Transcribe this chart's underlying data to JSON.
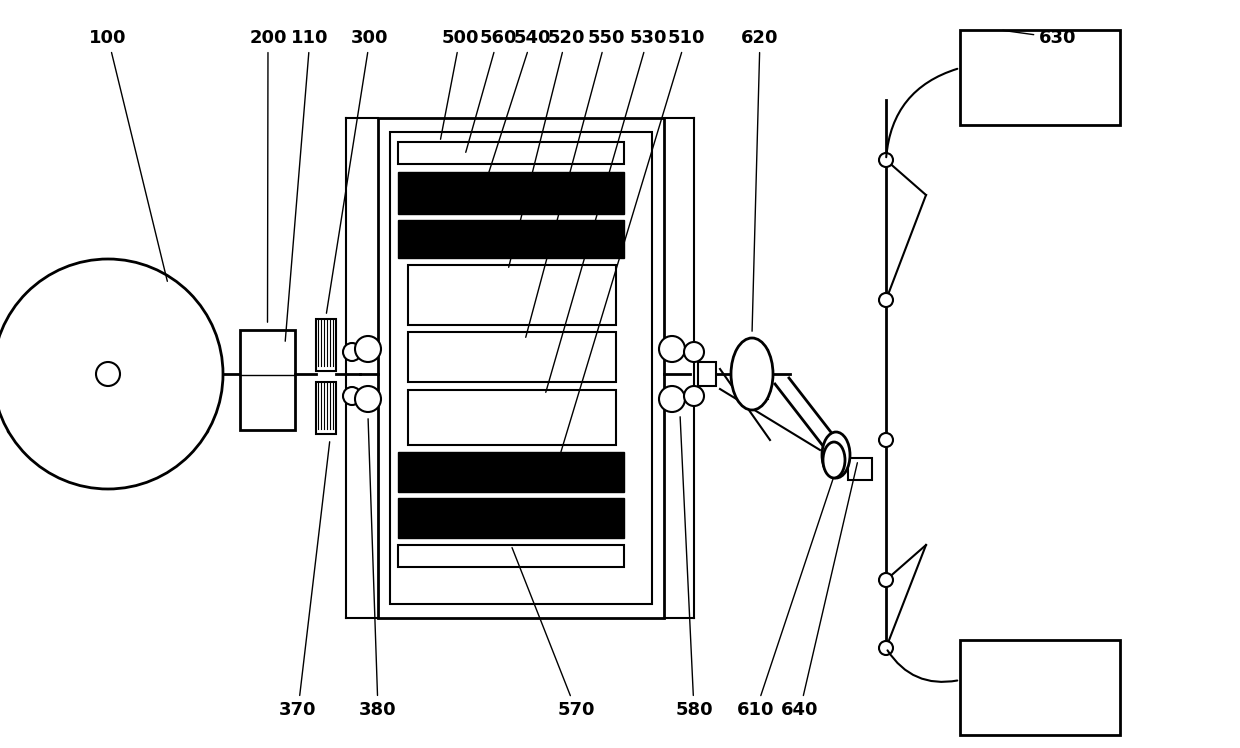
{
  "bg_color": "#ffffff",
  "lw": 1.5,
  "lw2": 2.0,
  "lw3": 2.5,
  "label_fontsize": 13,
  "label_fontweight": "bold",
  "fig_w": 12.4,
  "fig_h": 7.48,
  "dpi": 100
}
